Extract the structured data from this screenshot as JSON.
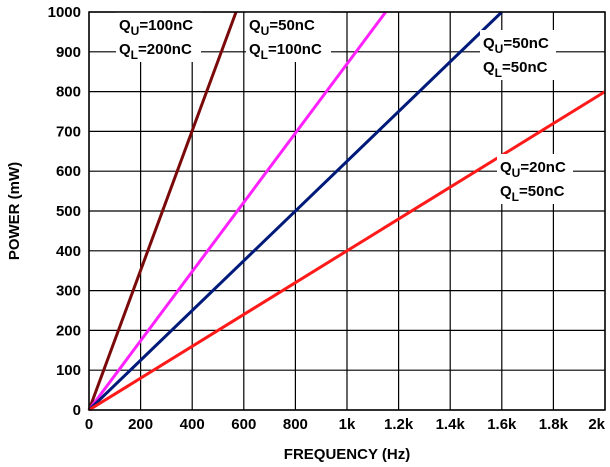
{
  "chart_data": {
    "type": "line",
    "xlabel": "FREQUENCY (Hz)",
    "ylabel": "POWER (mW)",
    "xlim": [
      0,
      2000
    ],
    "ylim": [
      0,
      1000
    ],
    "grid": true,
    "x_ticks": [
      {
        "value": 0,
        "label": "0"
      },
      {
        "value": 200,
        "label": "200"
      },
      {
        "value": 400,
        "label": "400"
      },
      {
        "value": 600,
        "label": "600"
      },
      {
        "value": 800,
        "label": "800"
      },
      {
        "value": 1000,
        "label": "1k"
      },
      {
        "value": 1200,
        "label": "1.2k"
      },
      {
        "value": 1400,
        "label": "1.4k"
      },
      {
        "value": 1600,
        "label": "1.6k"
      },
      {
        "value": 1800,
        "label": "1.8k"
      },
      {
        "value": 2000,
        "label": "2k"
      }
    ],
    "y_ticks": [
      {
        "value": 0,
        "label": "0"
      },
      {
        "value": 100,
        "label": "100"
      },
      {
        "value": 200,
        "label": "200"
      },
      {
        "value": 300,
        "label": "300"
      },
      {
        "value": 400,
        "label": "400"
      },
      {
        "value": 500,
        "label": "500"
      },
      {
        "value": 600,
        "label": "600"
      },
      {
        "value": 700,
        "label": "700"
      },
      {
        "value": 800,
        "label": "800"
      },
      {
        "value": 900,
        "label": "900"
      },
      {
        "value": 1000,
        "label": "1000"
      }
    ],
    "series": [
      {
        "color": "#7a0a0a",
        "x": [
          0,
          570
        ],
        "y": [
          0,
          1000
        ]
      },
      {
        "color": "#ff22ff",
        "x": [
          0,
          1150
        ],
        "y": [
          0,
          1000
        ]
      },
      {
        "color": "#001a7a",
        "x": [
          0,
          1600
        ],
        "y": [
          0,
          1000
        ]
      },
      {
        "color": "#ff1a1a",
        "x": [
          0,
          2000
        ],
        "y": [
          0,
          800
        ]
      }
    ],
    "annotations": [
      {
        "upper": "100nC",
        "lower": "200nC"
      },
      {
        "upper": "50nC",
        "lower": "100nC"
      },
      {
        "upper": "50nC",
        "lower": "50nC"
      },
      {
        "upper": "20nC",
        "lower": "50nC"
      }
    ],
    "annotation_letter": "Q",
    "annotation_upper_sub": "U",
    "annotation_lower_sub": "L",
    "annotation_sep": "="
  }
}
